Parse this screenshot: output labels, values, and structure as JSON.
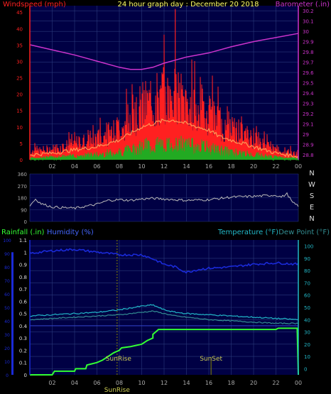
{
  "colors": {
    "background": "#000000",
    "plot_bg": "#000044",
    "grid": "#2a3a7a",
    "windspeed": "#ff2020",
    "wind_avg": "#ff9955",
    "wind_gust_low": "#22aa22",
    "barometer": "#cc33cc",
    "direction": "#bbbbbb",
    "humidity": "#1a2ad8",
    "temperature": "#22b8c8",
    "dewpoint": "#338e92",
    "rainfall": "#33ff33",
    "title": "#ffff66",
    "axis_text": "#aaaaaa",
    "sun_marker": "#888800"
  },
  "chart_data": [
    {
      "type": "line",
      "title": "24 hour graph day : December 20 2018",
      "left_label": "Windspeed (mph)",
      "right_label": "Barometer (.in)",
      "x_ticks": [
        "02",
        "04",
        "06",
        "08",
        "10",
        "12",
        "14",
        "16",
        "18",
        "20",
        "22",
        "00"
      ],
      "y_left_ticks": [
        "0",
        "5",
        "10",
        "15",
        "20",
        "25",
        "30",
        "35",
        "40",
        "45"
      ],
      "y_left_range": [
        0,
        47
      ],
      "y_right_ticks": [
        "28.8",
        "28.9",
        "29",
        "29.1",
        "29.2",
        "29.3",
        "29.4",
        "29.5",
        "29.6",
        "29.7",
        "29.8",
        "29.9",
        "30",
        "30.1",
        "30.2"
      ],
      "y_right_range": [
        28.75,
        30.25
      ],
      "x_range": [
        0,
        24
      ],
      "barometer": {
        "x": [
          0,
          2,
          4,
          6,
          8,
          9,
          10,
          11,
          12,
          13,
          14,
          16,
          18,
          20,
          22,
          24
        ],
        "y": [
          29.87,
          29.82,
          29.77,
          29.71,
          29.65,
          29.63,
          29.63,
          29.65,
          29.69,
          29.72,
          29.75,
          29.79,
          29.85,
          29.9,
          29.94,
          29.98
        ]
      },
      "wind_average": {
        "x": [
          0,
          2,
          4,
          6,
          7,
          8,
          9,
          10,
          11,
          12,
          13,
          14,
          15,
          16,
          17,
          18,
          19,
          20,
          21,
          22,
          23,
          24
        ],
        "y": [
          1.5,
          2,
          3,
          4,
          5,
          6,
          8,
          10,
          11,
          12,
          12,
          11,
          10,
          9,
          7,
          6,
          5,
          4,
          3,
          2,
          1.5,
          1
        ]
      },
      "wind_peak_max": 46
    },
    {
      "type": "line",
      "title": "",
      "right_labels": [
        "N",
        "W",
        "S",
        "E",
        "N"
      ],
      "y_ticks": [
        "360",
        "270",
        "180",
        "90",
        "0"
      ],
      "y_range": [
        0,
        360
      ],
      "x_range": [
        0,
        24
      ],
      "direction": {
        "x": [
          0,
          0.5,
          1,
          2,
          3,
          4,
          5,
          6,
          7,
          8,
          9,
          10,
          11,
          12,
          14,
          16,
          18,
          20,
          22,
          22.5,
          23,
          23.5,
          24
        ],
        "y": [
          120,
          170,
          135,
          110,
          105,
          100,
          115,
          130,
          160,
          165,
          160,
          170,
          175,
          170,
          160,
          165,
          185,
          190,
          200,
          185,
          210,
          140,
          120
        ]
      }
    },
    {
      "type": "line",
      "title": "",
      "left_labels": [
        "Rainfall (.in)",
        "Humidity (%)"
      ],
      "right_labels": [
        "Temperature (°F)",
        "Dew Point (°F)"
      ],
      "y_left_ticks": [
        "0",
        "10",
        "20",
        "30",
        "40",
        "50",
        "60",
        "70",
        "80",
        "90",
        "100"
      ],
      "y_left_range": [
        0,
        100
      ],
      "y_rain_ticks": [
        "0",
        "0.1",
        "0.2",
        "0.3",
        "0.4",
        "0.5",
        "0.6",
        "0.7",
        "0.8",
        "0.9",
        "1",
        "1.1"
      ],
      "y_rain_range": [
        0,
        1.1
      ],
      "y_right_ticks": [
        "0",
        "10",
        "20",
        "30",
        "40",
        "50",
        "60",
        "70",
        "80",
        "90",
        "100"
      ],
      "y_right_range": [
        -5,
        105
      ],
      "x_ticks": [
        "02",
        "04",
        "06",
        "08",
        "10",
        "12",
        "14",
        "16",
        "18",
        "20",
        "22",
        "00"
      ],
      "x_range": [
        0,
        24
      ],
      "annotations": [
        "SunRise",
        "SunSet",
        "SunRise"
      ],
      "sunrise_hour": 7.8,
      "sunset_hour": 16.2,
      "humidity": {
        "x": [
          0,
          2,
          4,
          6,
          8,
          10,
          11,
          12,
          13,
          14,
          15,
          16,
          18,
          20,
          22,
          24
        ],
        "y": [
          90,
          92,
          93,
          91,
          89,
          89,
          86,
          82,
          80,
          76,
          78,
          79,
          80,
          82,
          83,
          82
        ]
      },
      "temperature": {
        "x": [
          0,
          2,
          4,
          6,
          8,
          10,
          11,
          12,
          13,
          14,
          16,
          18,
          20,
          22,
          24
        ],
        "y": [
          43,
          44,
          45,
          46,
          48,
          51,
          52,
          48,
          46,
          45,
          44,
          43,
          42,
          41,
          40
        ]
      },
      "dewpoint": {
        "x": [
          0,
          2,
          4,
          6,
          8,
          10,
          11,
          12,
          13,
          14,
          16,
          18,
          20,
          22,
          24
        ],
        "y": [
          40,
          41,
          42,
          43,
          44,
          46,
          47,
          45,
          43,
          42,
          40,
          39,
          38,
          37,
          37
        ]
      },
      "rainfall": {
        "x": [
          0,
          2,
          2.2,
          4,
          4.1,
          5,
          5.1,
          6,
          6.5,
          7,
          7.5,
          8,
          8.2,
          9,
          10,
          10.5,
          11,
          11,
          11.5,
          12,
          13,
          14,
          16,
          18,
          20,
          21,
          22,
          22.2,
          23.9,
          24
        ],
        "y": [
          0,
          0,
          0.03,
          0.03,
          0.05,
          0.05,
          0.08,
          0.1,
          0.12,
          0.15,
          0.18,
          0.2,
          0.22,
          0.23,
          0.25,
          0.28,
          0.3,
          0.33,
          0.37,
          0.37,
          0.37,
          0.37,
          0.37,
          0.37,
          0.37,
          0.37,
          0.37,
          0.38,
          0.38,
          0
        ]
      }
    }
  ]
}
